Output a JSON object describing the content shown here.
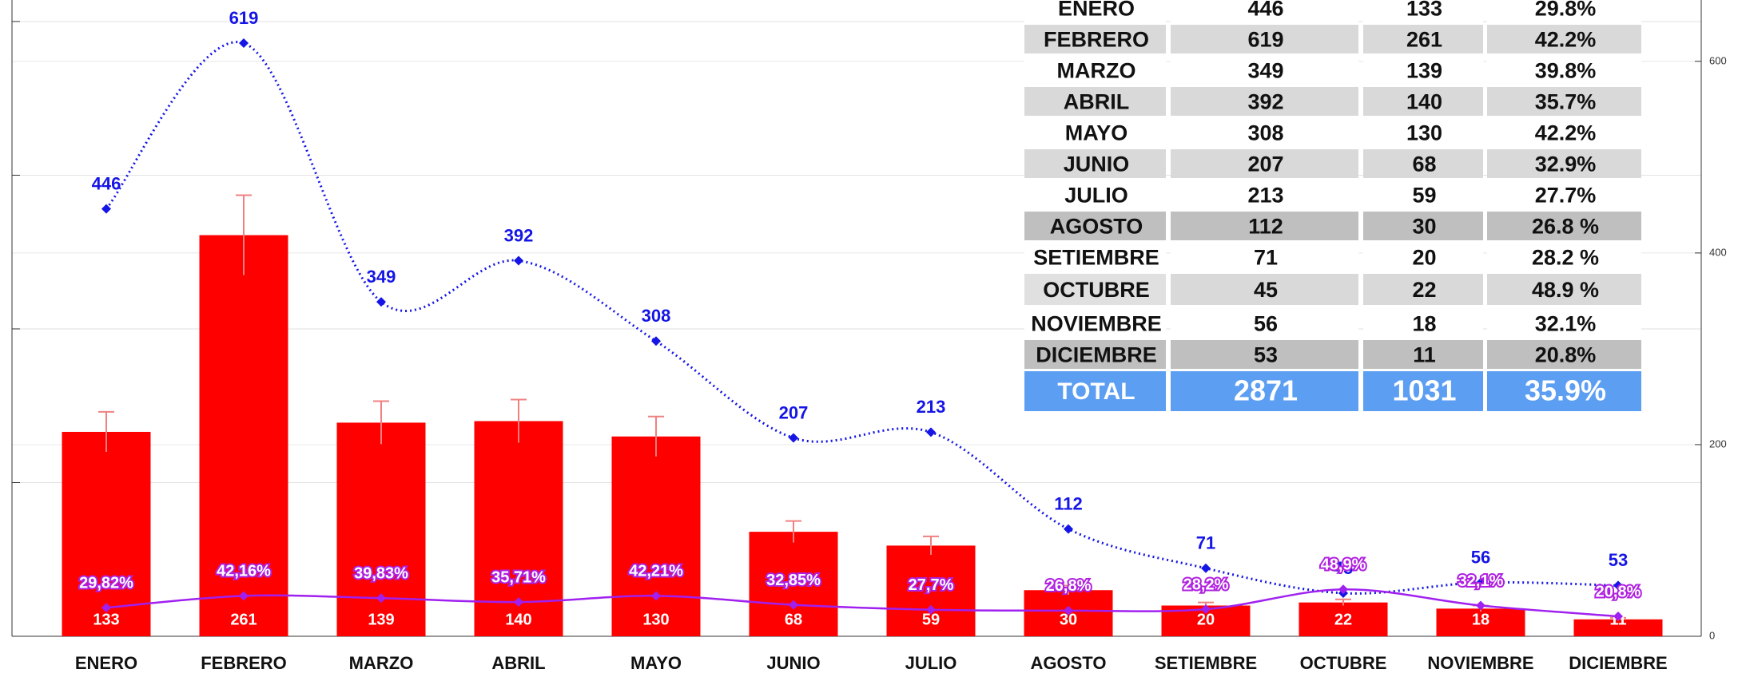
{
  "chart_data": {
    "type": "bar",
    "categories": [
      "ENERO",
      "FEBRERO",
      "MARZO",
      "ABRIL",
      "MAYO",
      "JUNIO",
      "JULIO",
      "AGOSTO",
      "SETIEMBRE",
      "OCTUBRE",
      "NOVIEMBRE",
      "DICIEMBRE"
    ],
    "series": [
      {
        "type": "bar",
        "color": "#ff0000",
        "values": [
          133,
          261,
          139,
          140,
          130,
          68,
          59,
          30,
          20,
          22,
          18,
          11
        ],
        "errors": [
          13,
          26,
          14,
          14,
          13,
          7,
          6,
          3,
          2,
          2,
          2,
          1
        ],
        "error_color": "#f08080"
      },
      {
        "type": "line",
        "axis": "y2",
        "color": "#1515e6",
        "dash": "dotted",
        "values": [
          446,
          619,
          349,
          392,
          308,
          207,
          213,
          112,
          71,
          45,
          56,
          53
        ]
      },
      {
        "type": "line",
        "axis": "y2",
        "color": "#a020f0",
        "values": [
          29.82,
          42.16,
          39.83,
          35.71,
          42.21,
          32.85,
          27.7,
          26.8,
          28.2,
          48.9,
          32.1,
          20.8
        ],
        "value_labels": [
          "29,82%",
          "42,16%",
          "39,83%",
          "35,71%",
          "42,21%",
          "32,85%",
          "27,7%",
          "26,8%",
          "28,2%",
          "48,9%",
          "32,1%",
          "20,8%"
        ]
      }
    ],
    "ylim": [
      0,
      414
    ],
    "yticks": [
      0,
      100,
      200,
      300,
      400
    ],
    "y2lim": [
      0,
      664
    ],
    "y2ticks": [
      0,
      200,
      400,
      600
    ],
    "grid": true
  },
  "table": {
    "rows": [
      [
        "ENERO",
        "446",
        "133",
        "29.8%"
      ],
      [
        "FEBRERO",
        "619",
        "261",
        "42.2%"
      ],
      [
        "MARZO",
        "349",
        "139",
        "39.8%"
      ],
      [
        "ABRIL",
        "392",
        "140",
        "35.7%"
      ],
      [
        "MAYO",
        "308",
        "130",
        "42.2%"
      ],
      [
        "JUNIO",
        "207",
        "68",
        "32.9%"
      ],
      [
        "JULIO",
        "213",
        "59",
        "27.7%"
      ],
      [
        "AGOSTO",
        "112",
        "30",
        "26.8 %"
      ],
      [
        "SETIEMBRE",
        "71",
        "20",
        "28.2 %"
      ],
      [
        "OCTUBRE",
        "45",
        "22",
        "48.9 %"
      ],
      [
        "NOVIEMBRE",
        "56",
        "18",
        "32.1%"
      ],
      [
        "DICIEMBRE",
        "53",
        "11",
        "20.8%"
      ]
    ],
    "total": [
      "TOTAL",
      "2871",
      "1031",
      "35.9%"
    ]
  }
}
